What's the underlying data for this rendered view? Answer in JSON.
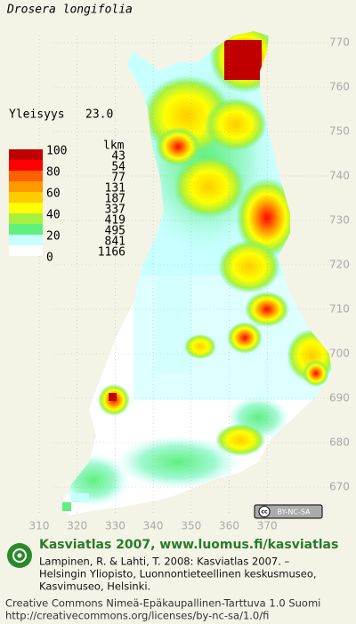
{
  "title": "Drosera longifolia",
  "frequency": {
    "label": "Yleisyys",
    "value": "23.0"
  },
  "legend": {
    "scale_labels": [
      100,
      80,
      60,
      40,
      20,
      0
    ],
    "count_header": "lkm",
    "counts": [
      43,
      54,
      77,
      131,
      187,
      337,
      419,
      495,
      841,
      1166
    ],
    "colors": [
      "#c00000",
      "#ff0000",
      "#ff6000",
      "#ff9900",
      "#ffcc00",
      "#ffff00",
      "#a8f040",
      "#60f080",
      "#c8ffff",
      "#ffffff"
    ]
  },
  "map": {
    "northing_labels": [
      770,
      760,
      750,
      740,
      730,
      720,
      710,
      700,
      690,
      680,
      670
    ],
    "easting_labels": [
      310,
      320,
      330,
      340,
      350,
      360,
      370
    ]
  },
  "license_badge": "BY-NC-SA",
  "footer": {
    "title": "Kasviatlas 2007, www.luomus.fi/kasviatlas",
    "citation": [
      "Lampinen, R. & Lahti, T. 2008: Kasviatlas 2007. –",
      "Helsingin Yliopisto, Luonnontieteellinen keskusmuseo,",
      "Kasvimuseo, Helsinki."
    ],
    "license": [
      "Creative Commons Nimeä-Epäkaupallinen-Tarttuva 1.0 Suomi",
      "http://creativecommons.org/licenses/by-nc-sa/1.0/fi"
    ]
  }
}
